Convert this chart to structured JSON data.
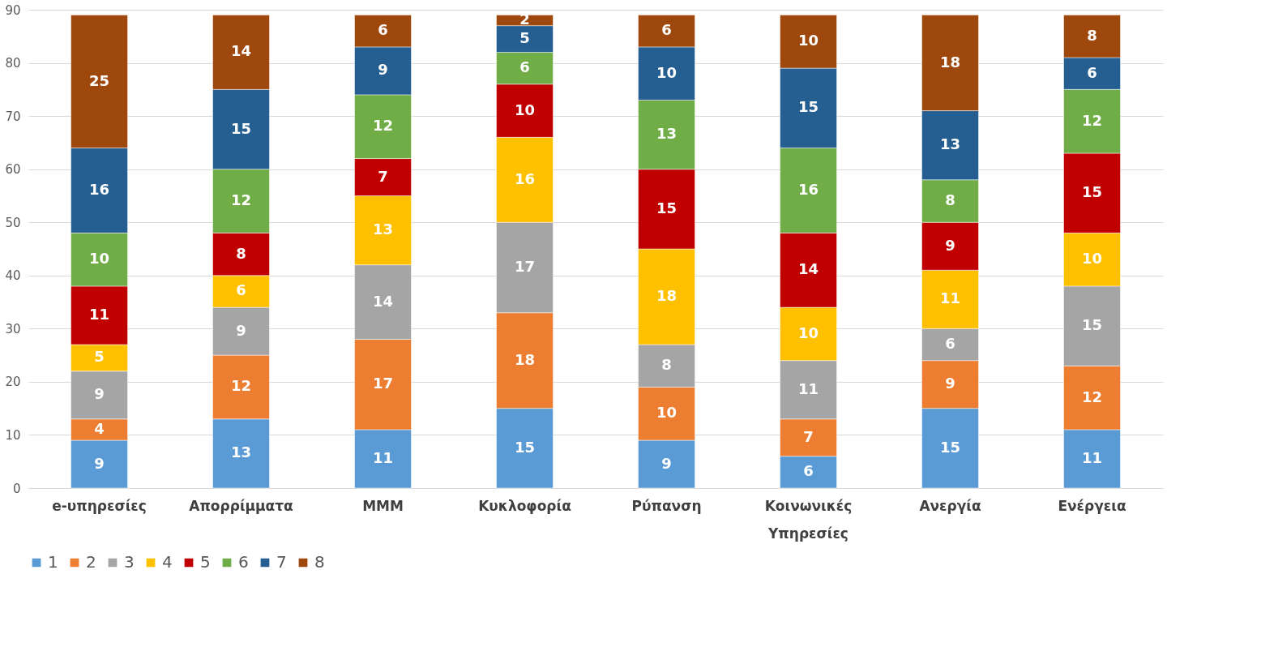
{
  "chart_data": {
    "type": "bar",
    "stacked": true,
    "categories": [
      "e-υπηρεσίες",
      "Απορρίμματα",
      "ΜΜΜ",
      "Κυκλοφορία",
      "Ρύπανση",
      "Κοινωνικές Υπηρεσίες",
      "Ανεργία",
      "Ενέργεια"
    ],
    "series": [
      {
        "name": "1",
        "color": "#5b9bd5",
        "values": [
          9,
          13,
          11,
          15,
          9,
          6,
          15,
          11
        ]
      },
      {
        "name": "2",
        "color": "#ed7d31",
        "values": [
          4,
          12,
          17,
          18,
          10,
          7,
          9,
          12
        ]
      },
      {
        "name": "3",
        "color": "#a5a5a5",
        "values": [
          9,
          9,
          14,
          17,
          8,
          11,
          6,
          15
        ]
      },
      {
        "name": "4",
        "color": "#ffc000",
        "values": [
          5,
          6,
          13,
          16,
          18,
          10,
          11,
          10
        ]
      },
      {
        "name": "5",
        "color": "#c00000",
        "values": [
          11,
          8,
          7,
          10,
          15,
          14,
          9,
          15
        ]
      },
      {
        "name": "6",
        "color": "#70ad47",
        "values": [
          10,
          12,
          12,
          6,
          13,
          16,
          8,
          12
        ]
      },
      {
        "name": "7",
        "color": "#255e91",
        "values": [
          16,
          15,
          9,
          5,
          10,
          15,
          13,
          6
        ]
      },
      {
        "name": "8",
        "color": "#9e480e",
        "values": [
          25,
          14,
          6,
          2,
          6,
          10,
          18,
          8
        ]
      }
    ],
    "ylim": [
      0,
      90
    ],
    "yticks": [
      0,
      10,
      20,
      30,
      40,
      50,
      60,
      70,
      80,
      90
    ],
    "grid": "y",
    "legend": "bottom",
    "data_labels": true
  }
}
